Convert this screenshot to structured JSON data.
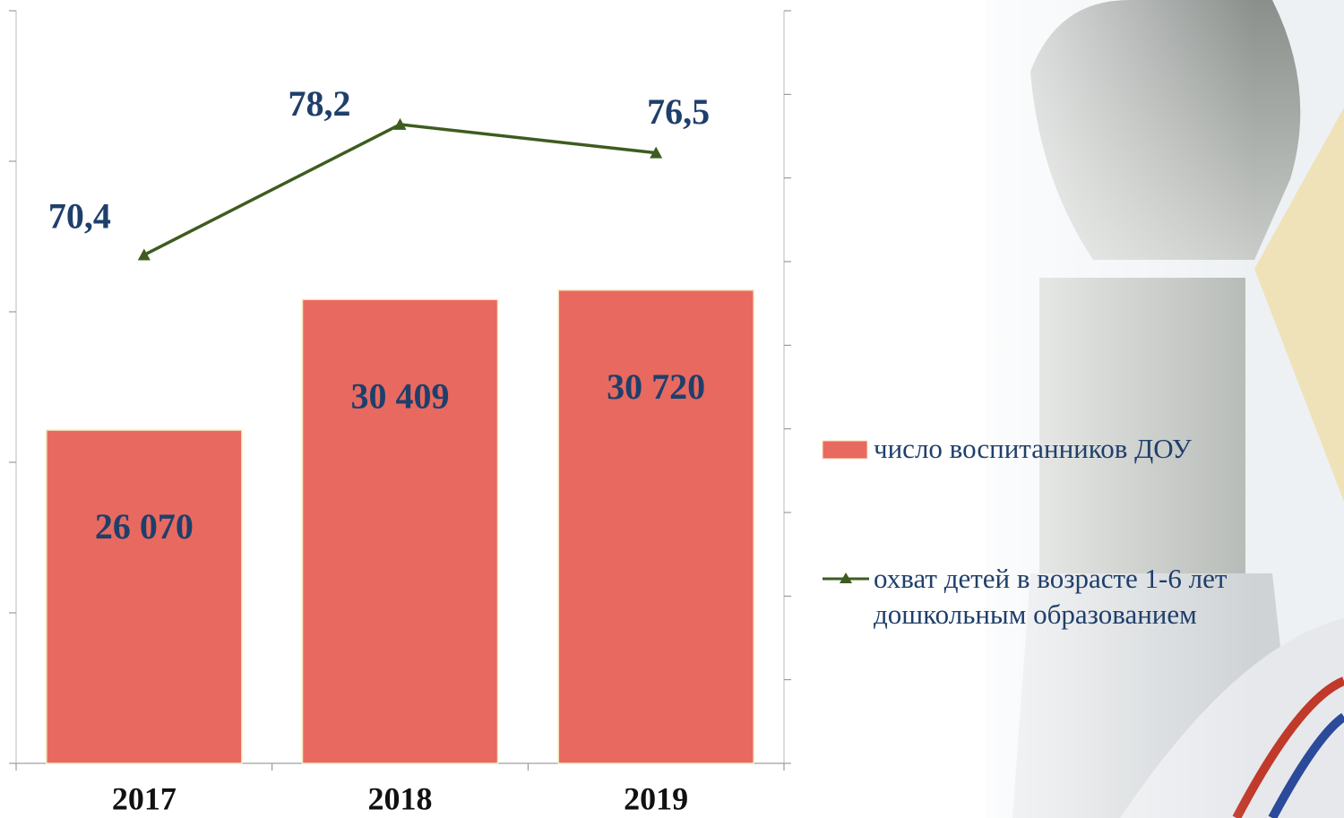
{
  "chart_data": {
    "type": "bar",
    "categories": [
      "2017",
      "2018",
      "2019"
    ],
    "series": [
      {
        "name": "число воспитанников ДОУ",
        "type": "bar",
        "color": "#e8695f",
        "values": [
          26070,
          30409,
          30720
        ],
        "value_labels": [
          "26 070",
          "30 409",
          "30 720"
        ]
      },
      {
        "name": "охват детей в возрасте 1-6 лет дошкольным образованием",
        "type": "line",
        "axis": "y2",
        "color": "#3d5c1f",
        "values": [
          70.4,
          78.2,
          76.5
        ],
        "value_labels": [
          "70,4",
          "78,2",
          "76,5"
        ]
      }
    ],
    "ylim": [
      15000,
      40000
    ],
    "yticks": [
      15000,
      20000,
      25000,
      30000,
      35000,
      40000
    ],
    "y2lim": [
      40,
      85
    ],
    "y2ticks": [
      40,
      45,
      50,
      55,
      60,
      65,
      70,
      75,
      80,
      85
    ],
    "legend": "right"
  }
}
